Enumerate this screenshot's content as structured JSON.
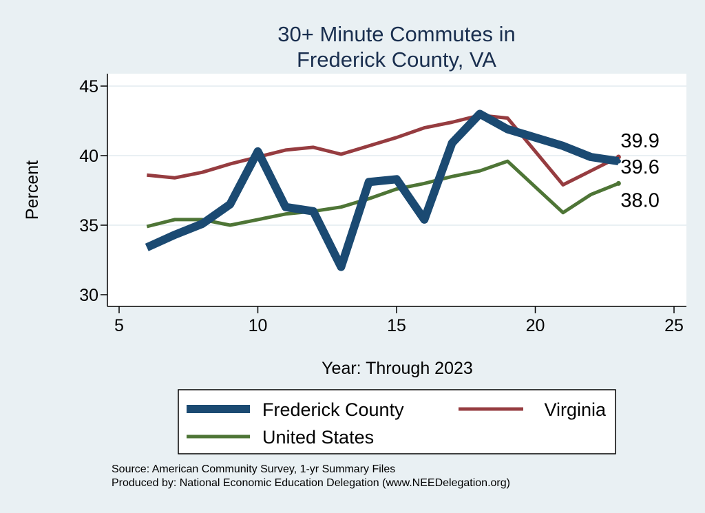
{
  "chart_data": {
    "type": "line",
    "title": [
      "30+ Minute Commutes in",
      "Frederick County, VA"
    ],
    "xlabel": "Year: Through 2023",
    "ylabel": "Percent",
    "xlim": [
      5,
      25
    ],
    "ylim": [
      30,
      45
    ],
    "xticks": [
      5,
      10,
      15,
      20,
      25
    ],
    "yticks": [
      30,
      35,
      40,
      45
    ],
    "grid": true,
    "legend_position": "bottom",
    "series": [
      {
        "name": "Frederick County",
        "color": "#1b4a72",
        "width": 12,
        "x": [
          6,
          7,
          8,
          9,
          10,
          11,
          12,
          13,
          14,
          15,
          16,
          17,
          18,
          19,
          20,
          21,
          22,
          23
        ],
        "y": [
          33.4,
          34.3,
          35.1,
          36.5,
          40.3,
          36.3,
          36.0,
          32.0,
          38.1,
          38.3,
          35.4,
          40.9,
          43.0,
          41.9,
          41.3,
          40.7,
          39.9,
          39.6
        ],
        "end_label": "39.6"
      },
      {
        "name": "Virginia",
        "color": "#963c40",
        "width": 5,
        "x": [
          6,
          7,
          8,
          9,
          10,
          11,
          12,
          13,
          14,
          15,
          16,
          17,
          18,
          19,
          20,
          21,
          22,
          23
        ],
        "y": [
          38.6,
          38.4,
          38.8,
          39.4,
          39.9,
          40.4,
          40.6,
          40.1,
          40.7,
          41.3,
          42.0,
          42.4,
          42.9,
          42.7,
          40.3,
          37.9,
          38.9,
          39.9
        ],
        "end_label": "39.9"
      },
      {
        "name": "United States",
        "color": "#4e7536",
        "width": 5,
        "x": [
          6,
          7,
          8,
          9,
          10,
          11,
          12,
          13,
          14,
          15,
          16,
          17,
          18,
          19,
          21,
          22,
          23
        ],
        "y": [
          34.9,
          35.4,
          35.4,
          35.0,
          35.4,
          35.8,
          36.0,
          36.3,
          36.9,
          37.6,
          38.0,
          38.5,
          38.9,
          39.6,
          35.9,
          37.2,
          38.0
        ],
        "end_label": "38.0"
      }
    ],
    "notes": [
      "Source: American Community Survey, 1-yr Summary Files",
      "Produced by: National Economic Education Delegation (www.NEEDelegation.org)"
    ]
  }
}
